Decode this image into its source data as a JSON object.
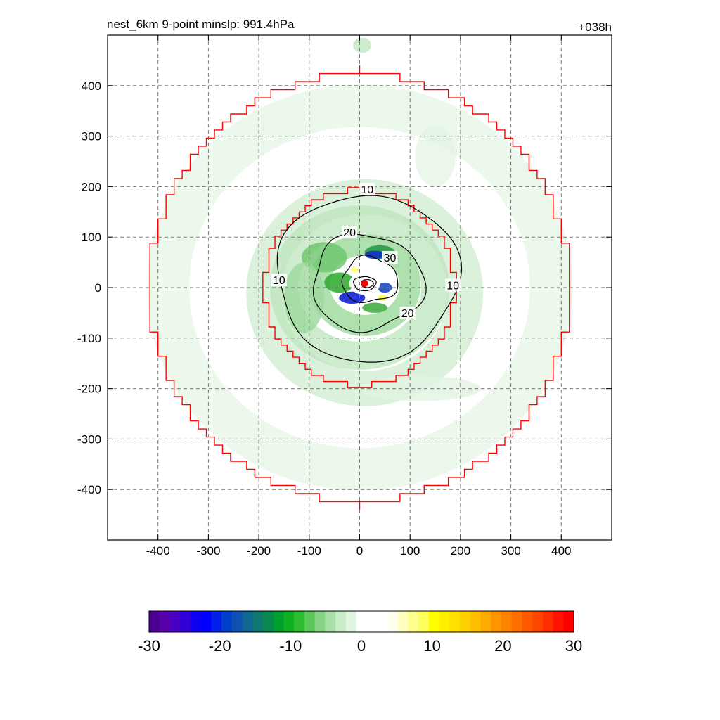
{
  "header": {
    "title": "nest_6km  9-point minslp: 991.4hPa",
    "time_label": "+038h"
  },
  "chart_data": {
    "type": "heatmap",
    "title": "nest_6km  9-point minslp: 991.4hPa",
    "subtitle": "+038h",
    "xlim": [
      -500,
      500
    ],
    "ylim": [
      -500,
      500
    ],
    "x_ticks": [
      -400,
      -300,
      -200,
      -100,
      0,
      100,
      200,
      300,
      400
    ],
    "y_ticks": [
      -400,
      -300,
      -200,
      -100,
      0,
      100,
      200,
      300,
      400
    ],
    "x_tick_labels": [
      "-400",
      "-300",
      "-200",
      "-100",
      "0",
      "100",
      "200",
      "300",
      "400"
    ],
    "y_tick_labels": [
      "-400",
      "-300",
      "-200",
      "-100",
      "0",
      "100",
      "200",
      "300",
      "400"
    ],
    "grid": true,
    "center_marker": {
      "x": 10,
      "y": 8,
      "color": "#ff0000"
    },
    "contours": [
      {
        "label": "10",
        "label_positions": [
          [
            15,
            195
          ],
          [
            -160,
            15
          ],
          [
            185,
            5
          ]
        ]
      },
      {
        "label": "20",
        "label_positions": [
          [
            -20,
            110
          ],
          [
            95,
            -50
          ]
        ]
      },
      {
        "label": "30",
        "label_positions": [
          [
            60,
            60
          ]
        ]
      }
    ],
    "boundaries": [
      {
        "name": "inner",
        "color": "#ff0000",
        "radius_approx": 195
      },
      {
        "name": "outer",
        "color": "#ff0000",
        "radius_approx": 425
      }
    ],
    "colorbar": {
      "ticks": [
        -30,
        -20,
        -10,
        0,
        10,
        20,
        30
      ],
      "tick_labels": [
        "-30",
        "-20",
        "-10",
        "0",
        "10",
        "20",
        "30"
      ],
      "range": [
        -30,
        30
      ],
      "colors": [
        "#4b0093",
        "#5a00a8",
        "#4a00c0",
        "#3000d8",
        "#1000f0",
        "#0000ff",
        "#0020e8",
        "#0040c8",
        "#1050b0",
        "#106890",
        "#107870",
        "#0a8850",
        "#00a030",
        "#10b020",
        "#30bc30",
        "#5cc85c",
        "#86d486",
        "#a8e0a8",
        "#c8ecc8",
        "#e0f6e0",
        "#ffffff",
        "#ffffff",
        "#ffffff",
        "#fffff0",
        "#ffffc0",
        "#ffff90",
        "#ffff60",
        "#ffff00",
        "#fff000",
        "#ffe000",
        "#ffd000",
        "#ffbe00",
        "#ffaa00",
        "#ff9600",
        "#ff8200",
        "#ff6e00",
        "#ff5a00",
        "#ff4600",
        "#ff2e00",
        "#ff1400",
        "#ff0000"
      ]
    }
  }
}
